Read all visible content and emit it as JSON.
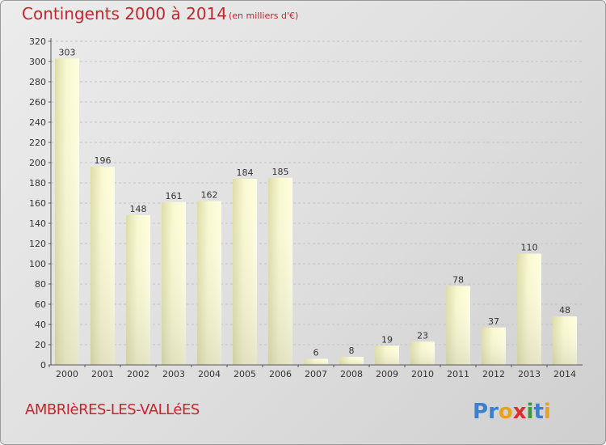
{
  "chart_data": {
    "type": "bar",
    "title": "Contingents 2000 à 2014",
    "subtitle": "(en milliers d'€)",
    "categories": [
      "2000",
      "2001",
      "2002",
      "2003",
      "2004",
      "2005",
      "2006",
      "2007",
      "2008",
      "2009",
      "2010",
      "2011",
      "2012",
      "2013",
      "2014"
    ],
    "values": [
      303,
      196,
      148,
      161,
      162,
      184,
      185,
      6,
      8,
      19,
      23,
      78,
      37,
      110,
      48
    ],
    "ylim": [
      0,
      320
    ],
    "yticks": [
      0,
      20,
      40,
      60,
      80,
      100,
      120,
      140,
      160,
      180,
      200,
      220,
      240,
      260,
      280,
      300,
      320
    ],
    "grid": true,
    "bar_color": "#f5f5c8"
  },
  "footer": {
    "town": "AMBRIèRES-LES-VALLéES",
    "logo": "Proxiti"
  }
}
